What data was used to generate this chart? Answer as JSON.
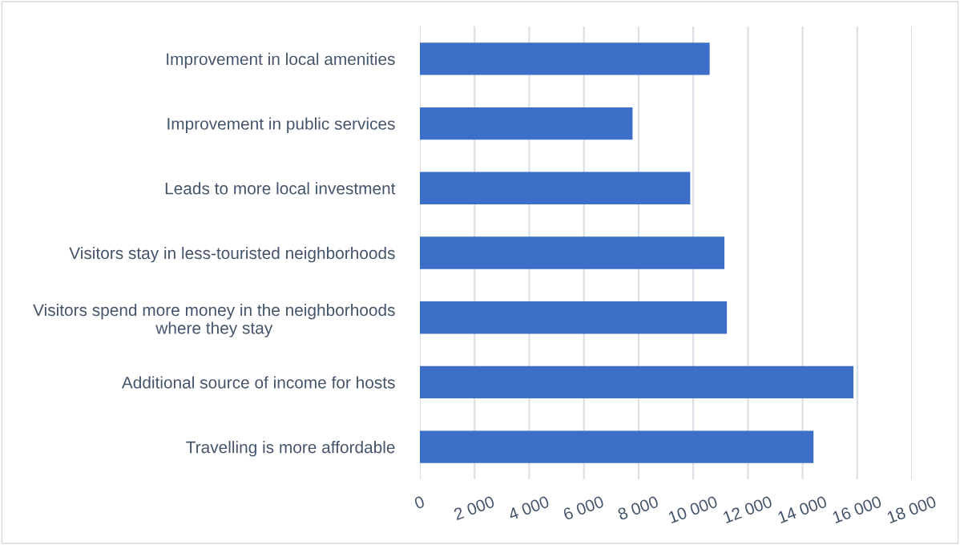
{
  "chart_data": {
    "type": "bar",
    "orientation": "horizontal",
    "categories": [
      "Improvement in local amenities",
      "Improvement in public services",
      "Leads to more local investment",
      "Visitors stay in less-touristed neighborhoods",
      "Visitors spend more money in the neighborhoods\nwhere they stay",
      "Additional source of income for hosts",
      "Travelling is more affordable"
    ],
    "values": [
      10600,
      7780,
      9890,
      11140,
      11230,
      15860,
      14400
    ],
    "color": "#3d6fc9",
    "xlim": [
      0,
      18000
    ],
    "xticks": [
      0,
      {
        "value": 2000,
        "label": "2 000"
      },
      {
        "value": 4000,
        "label": "4 000"
      },
      {
        "value": 6000,
        "label": "6 000"
      },
      {
        "value": 8000,
        "label": "8 000"
      },
      {
        "value": 10000,
        "label": "10 000"
      },
      {
        "value": 12000,
        "label": "12 000"
      },
      {
        "value": 14000,
        "label": "14 000"
      },
      {
        "value": 16000,
        "label": "16 000"
      },
      {
        "value": 18000,
        "label": "18 000"
      }
    ],
    "grid": "x"
  }
}
